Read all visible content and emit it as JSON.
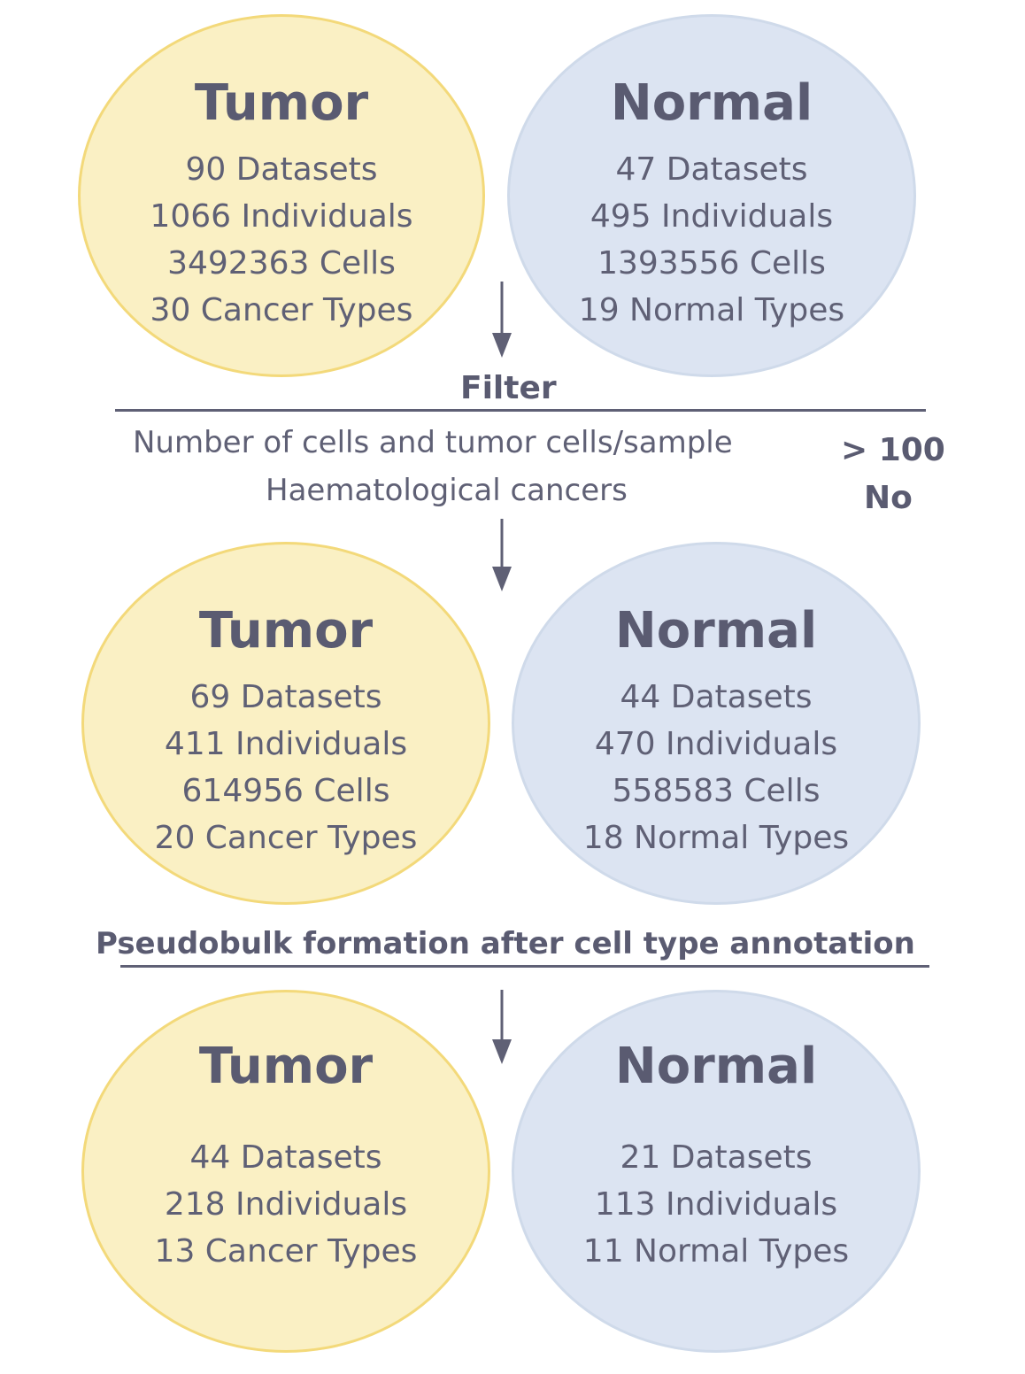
{
  "stage1": {
    "tumor": {
      "title": "Tumor",
      "stats": [
        "90 Datasets",
        "1066 Individuals",
        "3492363 Cells",
        "30 Cancer Types"
      ]
    },
    "normal": {
      "title": "Normal",
      "stats": [
        "47 Datasets",
        "495 Individuals",
        "1393556 Cells",
        "19 Normal Types"
      ]
    }
  },
  "filter": {
    "title": "Filter",
    "criteria": [
      {
        "label": "Number of cells and tumor cells/sample",
        "value": "> 100"
      },
      {
        "label": "Haematological cancers",
        "value": "No"
      }
    ]
  },
  "stage2": {
    "tumor": {
      "title": "Tumor",
      "stats": [
        "69 Datasets",
        "411 Individuals",
        "614956 Cells",
        "20 Cancer Types"
      ]
    },
    "normal": {
      "title": "Normal",
      "stats": [
        "44 Datasets",
        "470 Individuals",
        "558583 Cells",
        "18 Normal Types"
      ]
    }
  },
  "pseudobulk": {
    "title": "Pseudobulk formation after cell type annotation"
  },
  "stage3": {
    "tumor": {
      "title": "Tumor",
      "stats": [
        "44 Datasets",
        "218 Individuals",
        "13 Cancer Types"
      ]
    },
    "normal": {
      "title": "Normal",
      "stats": [
        "21 Datasets",
        "113 Individuals",
        "11 Normal Types"
      ]
    }
  },
  "colors": {
    "tumor_fill": "#faf0c4",
    "tumor_border": "#f3d97a",
    "normal_fill": "#dce4f2",
    "normal_border": "#cfdaea",
    "text": "#5f6075"
  }
}
